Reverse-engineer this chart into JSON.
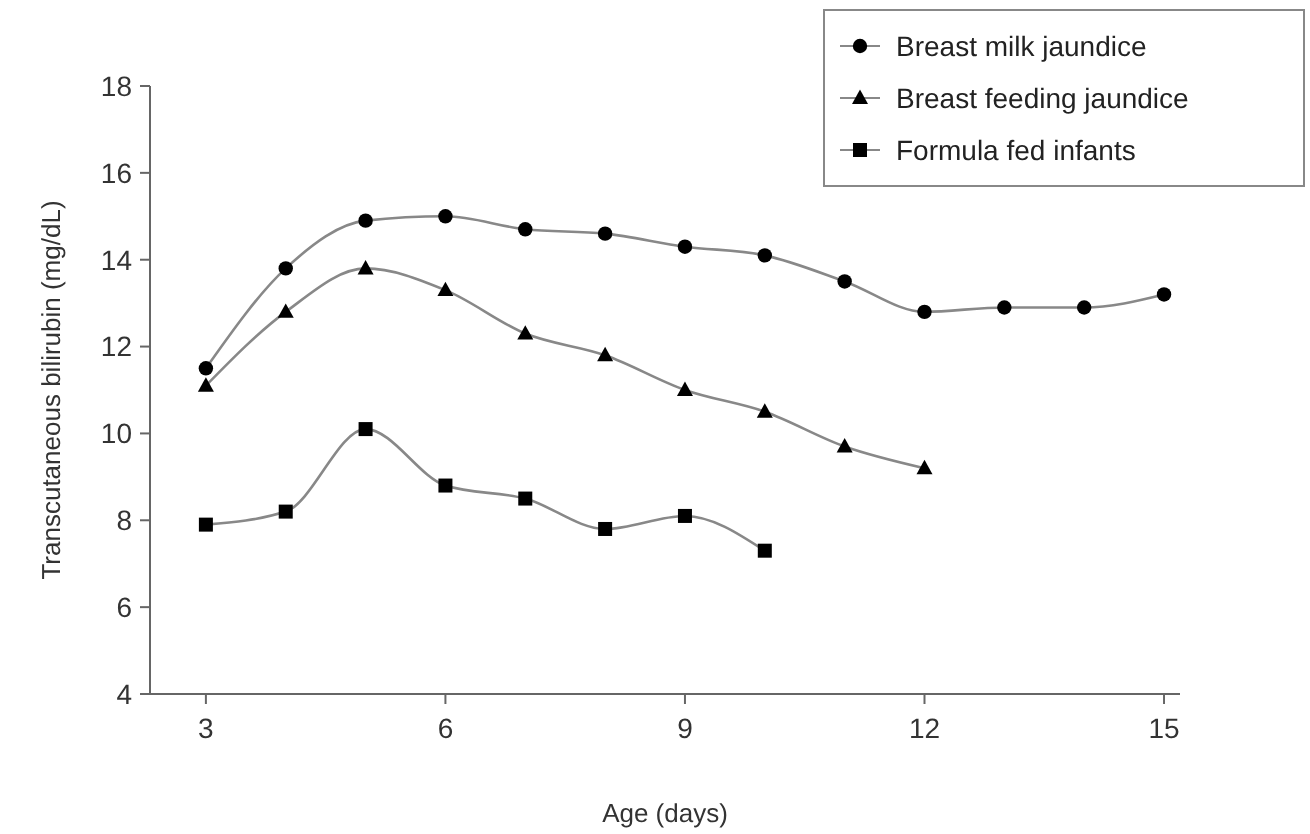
{
  "chart_data": {
    "type": "line",
    "xlabel": "Age (days)",
    "ylabel": "Transcutaneous bilirubin (mg/dL)",
    "xlim": [
      2.3,
      15.2
    ],
    "xticks": [
      3,
      6,
      9,
      12,
      15
    ],
    "ylim": [
      4,
      18
    ],
    "yticks": [
      4,
      6,
      8,
      10,
      12,
      14,
      16,
      18
    ],
    "grid": false,
    "legend": "top right",
    "series": [
      {
        "name": "Breast milk jaundice",
        "color": "#000000",
        "marker": "circle",
        "x": [
          3,
          4,
          5,
          6,
          7,
          8,
          9,
          10,
          11,
          12,
          13,
          14,
          15
        ],
        "values": [
          11.5,
          13.8,
          14.9,
          15.0,
          14.7,
          14.6,
          14.3,
          14.1,
          13.5,
          12.8,
          12.9,
          12.9,
          13.2
        ]
      },
      {
        "name": "Breast feeding jaundice",
        "color": "#000000",
        "marker": "triangle",
        "x": [
          3,
          4,
          5,
          6,
          7,
          8,
          9,
          10,
          11,
          12
        ],
        "values": [
          11.1,
          12.8,
          13.8,
          13.3,
          12.3,
          11.8,
          11.0,
          10.5,
          9.7,
          9.2
        ]
      },
      {
        "name": "Formula fed infants",
        "color": "#000000",
        "marker": "square",
        "x": [
          3,
          4,
          5,
          6,
          7,
          8,
          9,
          10
        ],
        "values": [
          7.9,
          8.2,
          10.1,
          8.8,
          8.5,
          7.8,
          8.1,
          7.3
        ]
      }
    ]
  }
}
